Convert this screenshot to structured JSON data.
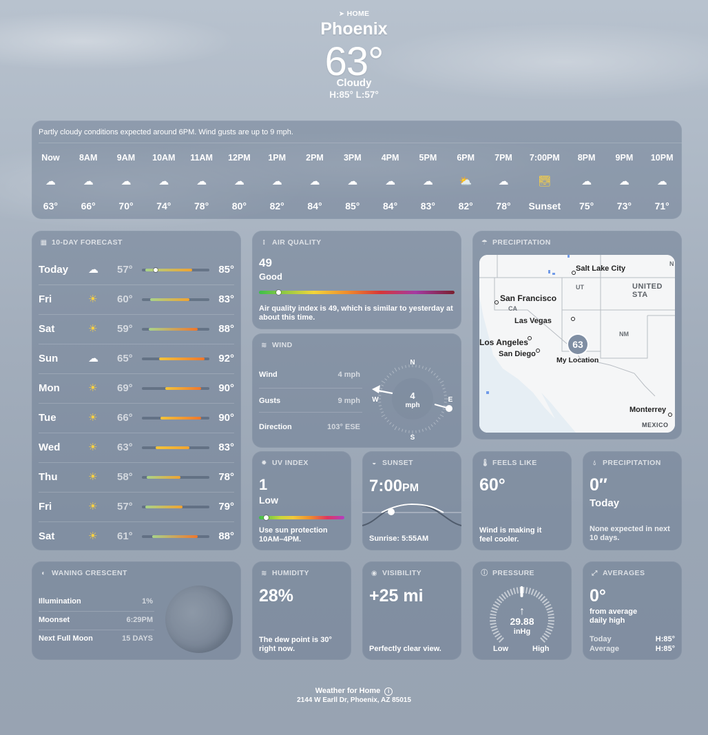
{
  "header": {
    "location_label": "HOME",
    "city": "Phoenix",
    "temperature": "63°",
    "condition": "Cloudy",
    "hi_lo": "H:85°  L:57°"
  },
  "hourly": {
    "summary": "Partly cloudy conditions expected around 6PM. Wind gusts are up to 9 mph.",
    "hours": [
      {
        "time": "Now",
        "icon": "cloud-icon",
        "value": "63°"
      },
      {
        "time": "8AM",
        "icon": "cloud-icon",
        "value": "66°"
      },
      {
        "time": "9AM",
        "icon": "cloud-icon",
        "value": "70°"
      },
      {
        "time": "10AM",
        "icon": "cloud-icon",
        "value": "74°"
      },
      {
        "time": "11AM",
        "icon": "cloud-icon",
        "value": "78°"
      },
      {
        "time": "12PM",
        "icon": "cloud-icon",
        "value": "80°"
      },
      {
        "time": "1PM",
        "icon": "cloud-icon",
        "value": "82°"
      },
      {
        "time": "2PM",
        "icon": "cloud-icon",
        "value": "84°"
      },
      {
        "time": "3PM",
        "icon": "cloud-icon",
        "value": "85°"
      },
      {
        "time": "4PM",
        "icon": "cloud-icon",
        "value": "84°"
      },
      {
        "time": "5PM",
        "icon": "cloud-icon",
        "value": "83°"
      },
      {
        "time": "6PM",
        "icon": "partly-cloudy-icon",
        "value": "82°"
      },
      {
        "time": "7PM",
        "icon": "cloud-icon",
        "value": "78°"
      },
      {
        "time": "7:00PM",
        "icon": "sunset-icon",
        "value": "Sunset"
      },
      {
        "time": "8PM",
        "icon": "cloud-icon",
        "value": "75°"
      },
      {
        "time": "9PM",
        "icon": "cloud-icon",
        "value": "73°"
      },
      {
        "time": "10PM",
        "icon": "cloud-icon",
        "value": "71°"
      }
    ]
  },
  "forecast": {
    "title": "10-DAY FORECAST",
    "range": [
      55,
      95
    ],
    "days": [
      {
        "day": "Today",
        "icon": "cloud-icon",
        "low": "57°",
        "high": "85°",
        "low_n": 57,
        "high_n": 85,
        "current": 63
      },
      {
        "day": "Fri",
        "icon": "sun-icon",
        "low": "60°",
        "high": "83°",
        "low_n": 60,
        "high_n": 83
      },
      {
        "day": "Sat",
        "icon": "sun-icon",
        "low": "59°",
        "high": "88°",
        "low_n": 59,
        "high_n": 88
      },
      {
        "day": "Sun",
        "icon": "cloud-icon",
        "low": "65°",
        "high": "92°",
        "low_n": 65,
        "high_n": 92
      },
      {
        "day": "Mon",
        "icon": "sun-icon",
        "low": "69°",
        "high": "90°",
        "low_n": 69,
        "high_n": 90
      },
      {
        "day": "Tue",
        "icon": "sun-icon",
        "low": "66°",
        "high": "90°",
        "low_n": 66,
        "high_n": 90
      },
      {
        "day": "Wed",
        "icon": "sun-icon",
        "low": "63°",
        "high": "83°",
        "low_n": 63,
        "high_n": 83
      },
      {
        "day": "Thu",
        "icon": "sun-icon",
        "low": "58°",
        "high": "78°",
        "low_n": 58,
        "high_n": 78
      },
      {
        "day": "Fri",
        "icon": "sun-icon",
        "low": "57°",
        "high": "79°",
        "low_n": 57,
        "high_n": 79
      },
      {
        "day": "Sat",
        "icon": "sun-icon",
        "low": "61°",
        "high": "88°",
        "low_n": 61,
        "high_n": 88
      }
    ]
  },
  "air_quality": {
    "title": "AIR QUALITY",
    "value": "49",
    "category": "Good",
    "level_fraction": 0.1,
    "description": "Air quality index is 49, which is similar to yesterday at about this time."
  },
  "wind": {
    "title": "WIND",
    "rows": [
      {
        "label": "Wind",
        "value": "4 mph"
      },
      {
        "label": "Gusts",
        "value": "9 mph"
      },
      {
        "label": "Direction",
        "value": "103° ESE"
      }
    ],
    "compass": {
      "n": "N",
      "e": "E",
      "s": "S",
      "w": "W",
      "speed": "4",
      "unit": "mph"
    }
  },
  "precipitation_map": {
    "title": "PRECIPITATION",
    "cities": {
      "salt_lake_city": "Salt Lake City",
      "ut": "UT",
      "united_states": "UNITED STA",
      "n": "N",
      "san_francisco": "San Francisco",
      "ca": "CA",
      "las_vegas": "Las Vegas",
      "nm": "NM",
      "los_angeles": "Los Angeles",
      "san_diego": "San Diego",
      "my_location": "My Location",
      "monterrey": "Monterrey",
      "mexico": "MEXICO"
    },
    "pin_temp": "63"
  },
  "uv": {
    "title": "UV INDEX",
    "value": "1",
    "category": "Low",
    "level_fraction": 0.08,
    "description": "Use sun protection 10AM–4PM."
  },
  "sunset": {
    "title": "SUNSET",
    "time": "7:00",
    "ampm": "PM",
    "sunrise": "Sunrise: 5:55AM"
  },
  "feels_like": {
    "title": "FEELS LIKE",
    "value": "60°",
    "description": "Wind is making it feel cooler."
  },
  "precipitation": {
    "title": "PRECIPITATION",
    "value": "0″",
    "period": "Today",
    "description": "None expected in next 10 days."
  },
  "moon": {
    "title": "WANING CRESCENT",
    "rows": [
      {
        "label": "Illumination",
        "value": "1%"
      },
      {
        "label": "Moonset",
        "value": "6:29PM"
      },
      {
        "label": "Next Full Moon",
        "value": "15 DAYS"
      }
    ]
  },
  "humidity": {
    "title": "HUMIDITY",
    "value": "28%",
    "description": "The dew point is 30° right now."
  },
  "visibility": {
    "title": "VISIBILITY",
    "value": "+25 mi",
    "description": "Perfectly clear view."
  },
  "pressure": {
    "title": "PRESSURE",
    "value": "29.88",
    "unit": "inHg",
    "low": "Low",
    "high": "High"
  },
  "averages": {
    "title": "AVERAGES",
    "value": "0°",
    "description": "from average daily high",
    "today_label": "Today",
    "today_value": "H:85°",
    "average_label": "Average",
    "average_value": "H:85°"
  },
  "footer": {
    "title": "Weather for Home",
    "address": "2144 W Earll Dr, Phoenix, AZ  85015"
  }
}
